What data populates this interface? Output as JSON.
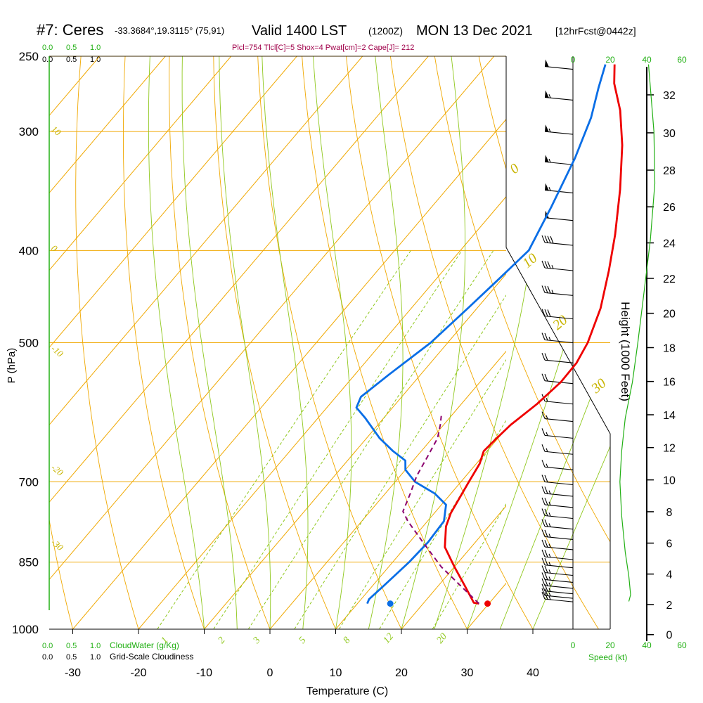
{
  "header": {
    "station": "#7: Ceres",
    "coords": "-33.3684°,19.3115° (75,91)",
    "valid": "Valid 1400 LST",
    "utc": "(1200Z)",
    "date": "MON 13 Dec 2021",
    "forecast": "[12hrFcst@0442z]"
  },
  "indices_line": "Plcl=754 Tlcl[C]=5 Shox=4 Pwat[cm]=2 Cape[J]= 212",
  "legend_left": {
    "cloudwater_ticks": [
      "0.0",
      "0.5",
      "1.0"
    ],
    "cloudiness_ticks": [
      "0.0",
      "0.5",
      "1.0"
    ],
    "cloudwater_label": "CloudWater (g/Kg)",
    "cloudiness_label": "Grid-Scale Cloudiness"
  },
  "speed_axis": {
    "ticks": [
      "0",
      "20",
      "40",
      "60"
    ],
    "label": "Speed (kt)"
  },
  "colors": {
    "temperature": "#ee0000",
    "dewpoint": "#0a6ee6",
    "parcel": "#8b006e",
    "isotherm": "#f0a800",
    "dry_adiabat": "#f0a800",
    "moist_adiabat": "#90c81e",
    "mixing_ratio": "#90c81e",
    "speed_profile": "#22b014",
    "frame": "#000000"
  },
  "chart_data": {
    "type": "line",
    "title": "",
    "xlabel": "Temperature (C)",
    "ylabel": "P (hPa)",
    "y2label": "Height (1000 Feet)",
    "x_ticks": [
      "-30",
      "-20",
      "-10",
      "0",
      "10",
      "20",
      "30",
      "40"
    ],
    "x_tick_values": [
      -30,
      -20,
      -10,
      0,
      10,
      20,
      30,
      40
    ],
    "p_ticks": [
      "250",
      "300",
      "400",
      "500",
      "700",
      "850",
      "1000"
    ],
    "p_tick_values": [
      250,
      300,
      400,
      500,
      700,
      850,
      1000
    ],
    "height_ticks": [
      "0",
      "2",
      "4",
      "6",
      "8",
      "10",
      "12",
      "14",
      "16",
      "18",
      "20",
      "22",
      "24",
      "26",
      "28",
      "30",
      "32"
    ],
    "height_tick_values": [
      0,
      2,
      4,
      6,
      8,
      10,
      12,
      14,
      16,
      18,
      20,
      22,
      24,
      26,
      28,
      30,
      32
    ],
    "xlim": [
      -34,
      36
    ],
    "plim": [
      250,
      1000
    ],
    "y_scale": "log-pressure",
    "isotherm_labels": [
      "10",
      "0",
      "-10",
      "-20",
      "-30"
    ],
    "isotherm_label_values": [
      10,
      0,
      -10,
      -20,
      -30
    ],
    "dry_adiabat_labels": [
      "0",
      "10",
      "20",
      "30"
    ],
    "mixing_ratio_labels": [
      "1",
      "2",
      "3",
      "5",
      "8",
      "12",
      "20"
    ],
    "series": [
      {
        "name": "",
        "role": "temperature",
        "points": [
          [
            28.5,
            940
          ],
          [
            27.6,
            938
          ],
          [
            24,
            900
          ],
          [
            20,
            860
          ],
          [
            16,
            820
          ],
          [
            13.5,
            780
          ],
          [
            12.5,
            755
          ],
          [
            11.2,
            700
          ],
          [
            10.5,
            670
          ],
          [
            9.5,
            650
          ],
          [
            9.8,
            630
          ],
          [
            10.2,
            610
          ],
          [
            11.5,
            580
          ],
          [
            12.3,
            550
          ],
          [
            12.2,
            525
          ],
          [
            11.3,
            500
          ],
          [
            8.8,
            460
          ],
          [
            5.2,
            420
          ],
          [
            1.5,
            385
          ],
          [
            -3.6,
            345
          ],
          [
            -9,
            310
          ],
          [
            -13.8,
            285
          ],
          [
            -18.2,
            267
          ],
          [
            -20.6,
            255
          ]
        ]
      },
      {
        "name": "",
        "role": "dewpoint",
        "points": [
          [
            11.5,
            940
          ],
          [
            11.2,
            930
          ],
          [
            11.7,
            900
          ],
          [
            12.5,
            850
          ],
          [
            12.8,
            810
          ],
          [
            12.5,
            770
          ],
          [
            10.7,
            740
          ],
          [
            7.5,
            720
          ],
          [
            3,
            700
          ],
          [
            0,
            680
          ],
          [
            -1.2,
            665
          ],
          [
            -4.3,
            650
          ],
          [
            -8,
            630
          ],
          [
            -12.8,
            600
          ],
          [
            -15.5,
            585
          ],
          [
            -16.2,
            570
          ],
          [
            -14.8,
            540
          ],
          [
            -12.6,
            500
          ],
          [
            -11.4,
            460
          ],
          [
            -10.5,
            430
          ],
          [
            -9.6,
            400
          ],
          [
            -11.8,
            360
          ],
          [
            -14.5,
            320
          ],
          [
            -17.3,
            290
          ],
          [
            -20,
            270
          ],
          [
            -22,
            255
          ]
        ]
      },
      {
        "name": "",
        "role": "parcel",
        "points": [
          [
            28.5,
            940
          ],
          [
            24,
            905
          ],
          [
            18,
            860
          ],
          [
            12,
            810
          ],
          [
            7,
            770
          ],
          [
            5,
            752
          ],
          [
            3.8,
            720
          ],
          [
            2.5,
            690
          ],
          [
            1.7,
            660
          ],
          [
            0.8,
            630
          ],
          [
            -0.5,
            610
          ],
          [
            -1.5,
            597
          ]
        ]
      }
    ],
    "surface_markers": [
      {
        "role": "temperature",
        "t": 29.8,
        "p": 940
      },
      {
        "role": "dewpoint",
        "t": 15,
        "p": 940
      }
    ],
    "wind_barbs": [
      {
        "p": 258,
        "speed_kt": 50
      },
      {
        "p": 278,
        "speed_kt": 55
      },
      {
        "p": 302,
        "speed_kt": 55
      },
      {
        "p": 325,
        "speed_kt": 55
      },
      {
        "p": 348,
        "speed_kt": 55
      },
      {
        "p": 372,
        "speed_kt": 50
      },
      {
        "p": 395,
        "speed_kt": 40
      },
      {
        "p": 420,
        "speed_kt": 35
      },
      {
        "p": 446,
        "speed_kt": 35
      },
      {
        "p": 472,
        "speed_kt": 30
      },
      {
        "p": 500,
        "speed_kt": 25
      },
      {
        "p": 525,
        "speed_kt": 20
      },
      {
        "p": 552,
        "speed_kt": 20
      },
      {
        "p": 580,
        "speed_kt": 15
      },
      {
        "p": 605,
        "speed_kt": 15
      },
      {
        "p": 630,
        "speed_kt": 15
      },
      {
        "p": 655,
        "speed_kt": 15
      },
      {
        "p": 680,
        "speed_kt": 15
      },
      {
        "p": 705,
        "speed_kt": 20
      },
      {
        "p": 725,
        "speed_kt": 25
      },
      {
        "p": 745,
        "speed_kt": 25
      },
      {
        "p": 765,
        "speed_kt": 25
      },
      {
        "p": 785,
        "speed_kt": 25
      },
      {
        "p": 805,
        "speed_kt": 25
      },
      {
        "p": 825,
        "speed_kt": 25
      },
      {
        "p": 845,
        "speed_kt": 25
      },
      {
        "p": 862,
        "speed_kt": 25
      },
      {
        "p": 878,
        "speed_kt": 25
      },
      {
        "p": 893,
        "speed_kt": 25
      },
      {
        "p": 906,
        "speed_kt": 25
      },
      {
        "p": 918,
        "speed_kt": 25
      },
      {
        "p": 928,
        "speed_kt": 25
      },
      {
        "p": 936,
        "speed_kt": 25
      }
    ],
    "wind_speed_profile": [
      [
        1,
        255
      ],
      [
        4,
        300
      ],
      [
        4.5,
        340
      ],
      [
        2,
        390
      ],
      [
        -2,
        450
      ],
      [
        -5,
        500
      ],
      [
        -8,
        550
      ],
      [
        -12,
        600
      ],
      [
        -14,
        650
      ],
      [
        -15,
        700
      ],
      [
        -14,
        760
      ],
      [
        -12,
        830
      ],
      [
        -10,
        880
      ],
      [
        -9,
        920
      ],
      [
        -10,
        935
      ]
    ]
  }
}
